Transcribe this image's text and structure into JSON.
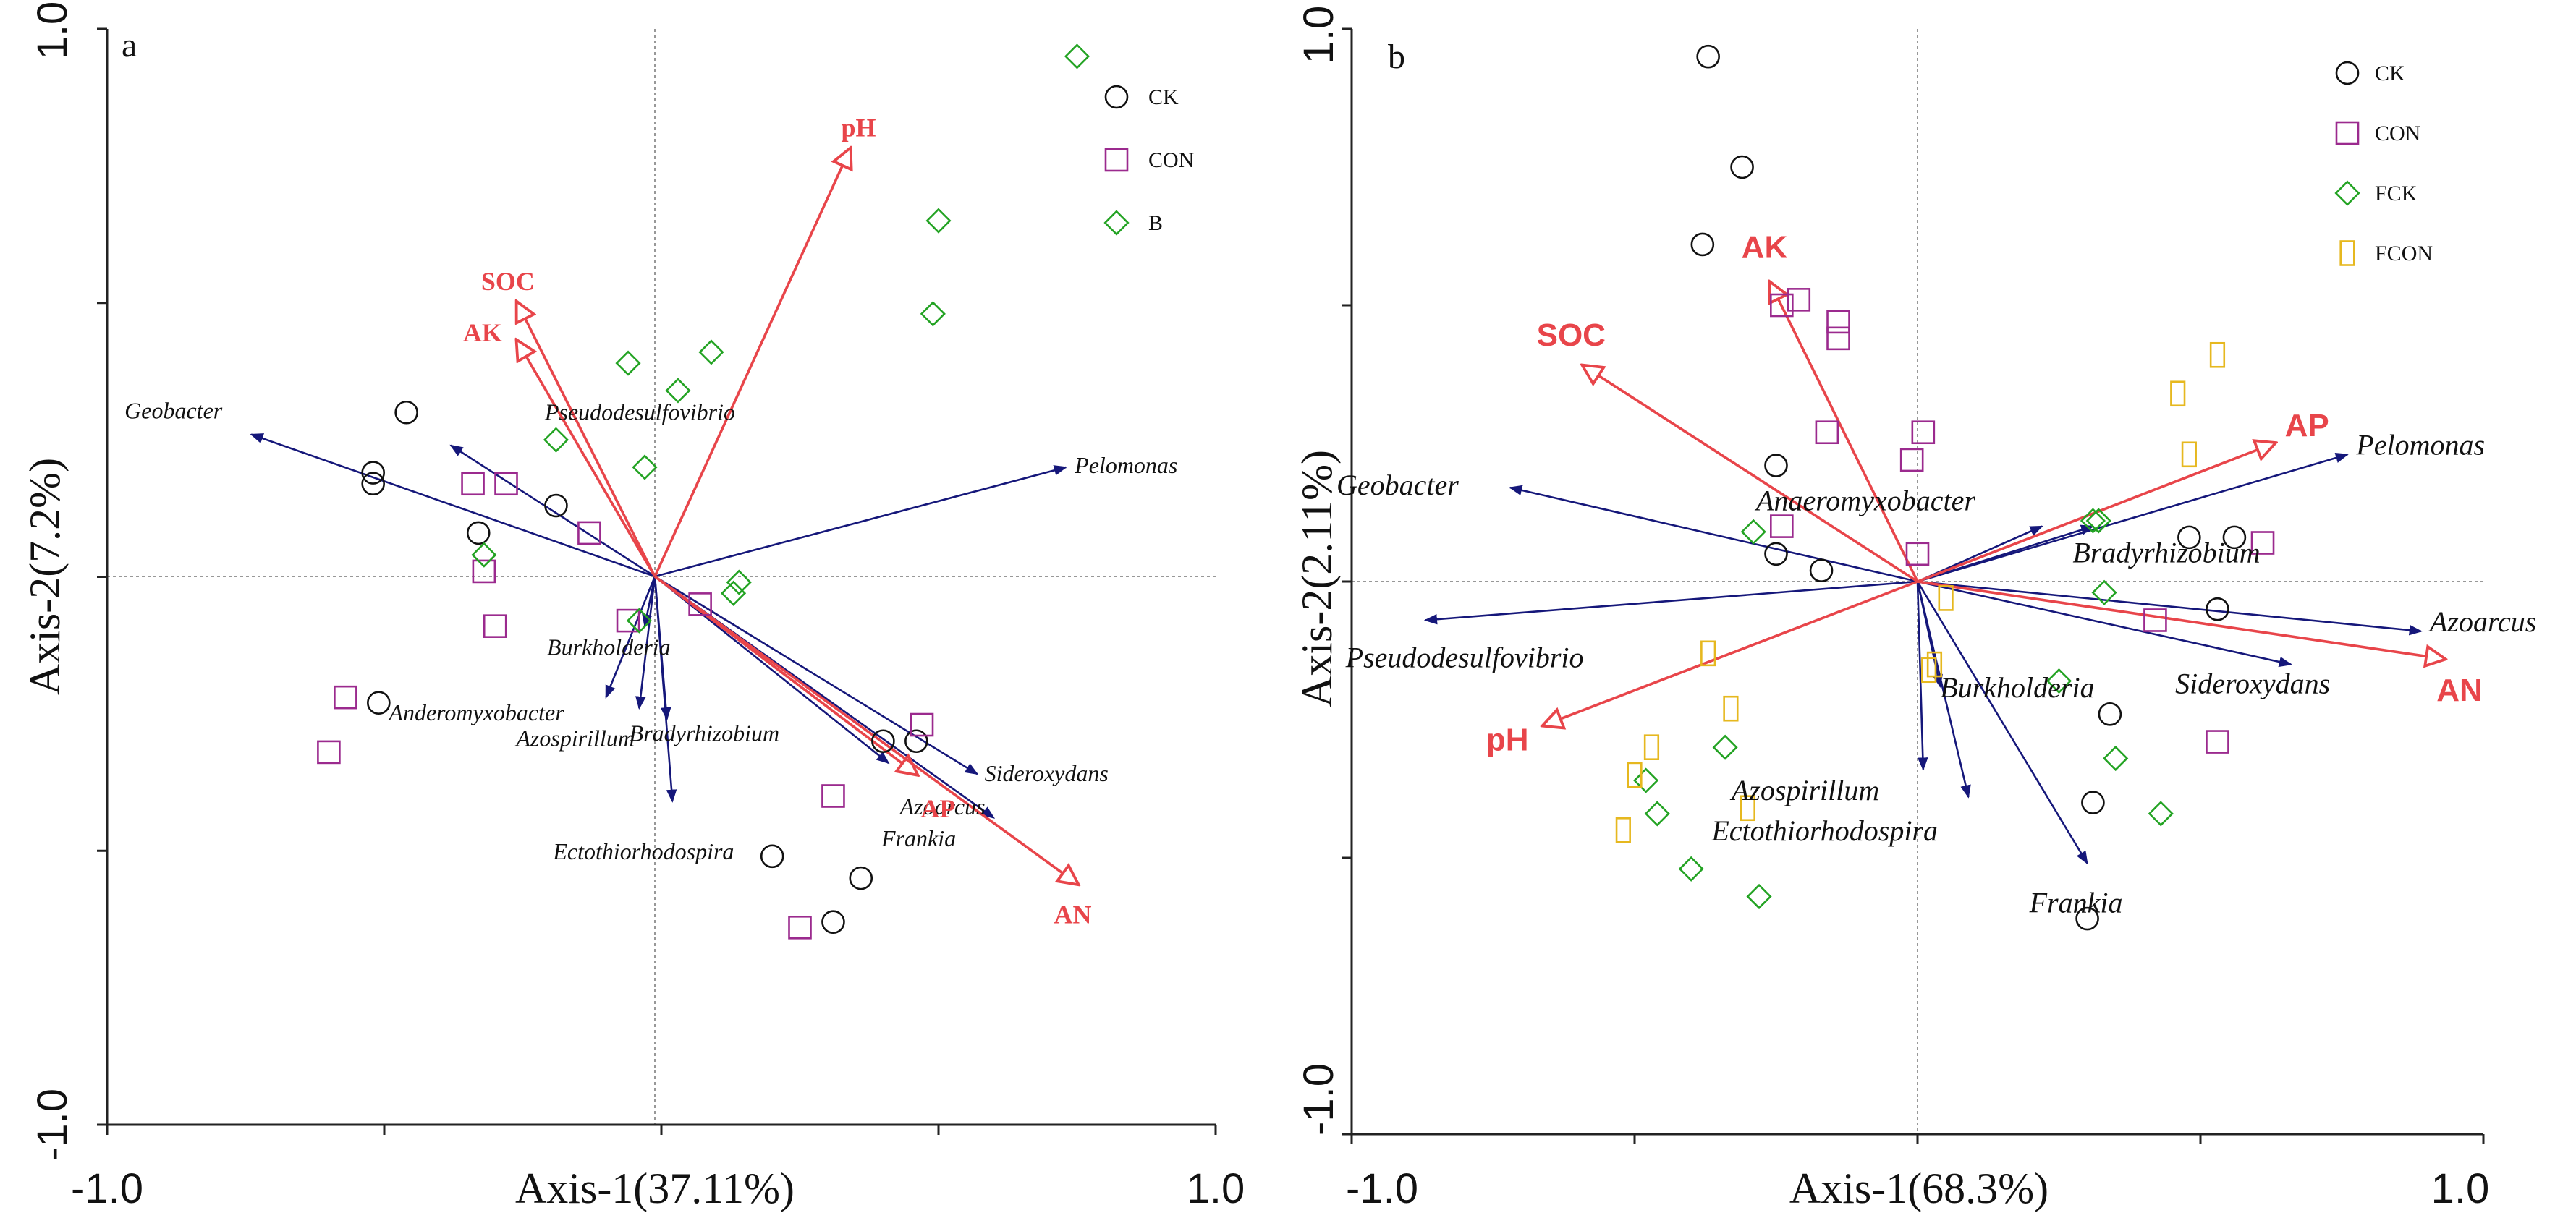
{
  "chart_data": [
    {
      "type": "scatter",
      "panel_label": "a",
      "xlabel": "Axis-1(37.11%)",
      "ylabel": "Axis-2(7.2%)",
      "xlim": [
        -1.0,
        1.0
      ],
      "ylim": [
        -1.0,
        1.0
      ],
      "x_tick_labels": [
        "-1.0",
        "1.0"
      ],
      "y_tick_labels": [
        "-1.0",
        "1.0"
      ],
      "legend": [
        {
          "name": "CK",
          "marker": "circle",
          "color": "#111111"
        },
        {
          "name": "CON",
          "marker": "square",
          "color": "#9b2a8e"
        },
        {
          "name": "B",
          "marker": "diamond",
          "color": "#23a323"
        }
      ],
      "species_vectors": [
        {
          "name": "Geobacter",
          "x": -0.74,
          "y": 0.26
        },
        {
          "name": "Pseudodesulfovibrio",
          "x": -0.38,
          "y": 0.24
        },
        {
          "name": "Pelomonas",
          "x": 0.73,
          "y": 0.2
        },
        {
          "name": "Burkholderia",
          "x": -0.03,
          "y": -0.09
        },
        {
          "name": "Anderomyxobacter",
          "x": -0.1,
          "y": -0.22
        },
        {
          "name": "Azospirillum",
          "x": -0.04,
          "y": -0.24
        },
        {
          "name": "Bradyrhizobium",
          "x": 0.01,
          "y": -0.26
        },
        {
          "name": "Ectothiorhodospira",
          "x": 0.02,
          "y": -0.41
        },
        {
          "name": "Frankia",
          "x": 0.41,
          "y": -0.34
        },
        {
          "name": "Sideroxydans",
          "x": 0.57,
          "y": -0.36
        },
        {
          "name": "Azoarcus",
          "x": 0.6,
          "y": -0.44
        }
      ],
      "env_vectors": [
        {
          "name": "pH",
          "x": 0.34,
          "y": 0.78
        },
        {
          "name": "SOC",
          "x": -0.26,
          "y": 0.5
        },
        {
          "name": "AK",
          "x": -0.26,
          "y": 0.43
        },
        {
          "name": "AP",
          "x": 0.46,
          "y": -0.36
        },
        {
          "name": "AN",
          "x": 0.75,
          "y": -0.56
        }
      ],
      "samples": {
        "CK": [
          [
            -0.46,
            0.3
          ],
          [
            -0.52,
            0.19
          ],
          [
            -0.52,
            0.17
          ],
          [
            -0.33,
            0.08
          ],
          [
            -0.19,
            0.13
          ],
          [
            -0.51,
            -0.23
          ],
          [
            0.2,
            -0.51
          ],
          [
            0.36,
            -0.55
          ],
          [
            0.31,
            -0.63
          ],
          [
            0.4,
            -0.3
          ],
          [
            0.46,
            -0.3
          ]
        ],
        "CON": [
          [
            -0.34,
            0.17
          ],
          [
            -0.28,
            0.17
          ],
          [
            -0.13,
            0.08
          ],
          [
            -0.32,
            0.01
          ],
          [
            -0.3,
            -0.09
          ],
          [
            -0.06,
            -0.08
          ],
          [
            0.07,
            -0.05
          ],
          [
            -0.57,
            -0.22
          ],
          [
            -0.6,
            -0.32
          ],
          [
            0.47,
            -0.27
          ],
          [
            0.31,
            -0.4
          ],
          [
            0.25,
            -0.64
          ]
        ],
        "B": [
          [
            0.75,
            0.95
          ],
          [
            0.5,
            0.65
          ],
          [
            0.49,
            0.48
          ],
          [
            -0.19,
            0.25
          ],
          [
            0.09,
            0.41
          ],
          [
            -0.06,
            0.39
          ],
          [
            0.03,
            0.34
          ],
          [
            -0.03,
            0.2
          ],
          [
            -0.32,
            0.04
          ],
          [
            0.14,
            -0.01
          ],
          [
            0.13,
            -0.03
          ],
          [
            -0.04,
            -0.08
          ]
        ]
      }
    },
    {
      "type": "scatter",
      "panel_label": "b",
      "xlabel": "Axis-1(68.3%)",
      "ylabel": "Axis-2(2.11%)",
      "xlim": [
        -1.0,
        1.0
      ],
      "ylim": [
        -1.0,
        1.0
      ],
      "x_tick_labels": [
        "-1.0",
        "1.0"
      ],
      "y_tick_labels": [
        "-1.0",
        "1.0"
      ],
      "legend": [
        {
          "name": "CK",
          "marker": "circle",
          "color": "#111111"
        },
        {
          "name": "CON",
          "marker": "square",
          "color": "#9b2a8e"
        },
        {
          "name": "FCK",
          "marker": "diamond",
          "color": "#23a323"
        },
        {
          "name": "FCON",
          "marker": "rect",
          "color": "#e6b81f"
        }
      ],
      "species_vectors": [
        {
          "name": "Geobacter",
          "x": -0.72,
          "y": 0.17
        },
        {
          "name": "Pelomonas",
          "x": 0.76,
          "y": 0.23
        },
        {
          "name": "Anaeromyxobacter",
          "x": 0.22,
          "y": 0.1
        },
        {
          "name": "Bradyrhizobium",
          "x": 0.31,
          "y": 0.1
        },
        {
          "name": "Pseudodesulfovibrio",
          "x": -0.87,
          "y": -0.07
        },
        {
          "name": "Azoarcus",
          "x": 0.89,
          "y": -0.09
        },
        {
          "name": "Burkholderia",
          "x": 0.04,
          "y": -0.19
        },
        {
          "name": "Sideroxydans",
          "x": 0.66,
          "y": -0.15
        },
        {
          "name": "Azospirillum",
          "x": 0.01,
          "y": -0.34
        },
        {
          "name": "Ectothiorhodospira",
          "x": 0.09,
          "y": -0.39
        },
        {
          "name": "Frankia",
          "x": 0.3,
          "y": -0.51
        }
      ],
      "env_vectors": [
        {
          "name": "AK",
          "x": -0.26,
          "y": 0.54
        },
        {
          "name": "SOC",
          "x": -0.59,
          "y": 0.39
        },
        {
          "name": "AP",
          "x": 0.63,
          "y": 0.25
        },
        {
          "name": "AN",
          "x": 0.93,
          "y": -0.14
        },
        {
          "name": "pH",
          "x": -0.66,
          "y": -0.26
        }
      ],
      "samples": {
        "CK": [
          [
            -0.37,
            0.95
          ],
          [
            -0.31,
            0.75
          ],
          [
            -0.38,
            0.61
          ],
          [
            -0.25,
            0.21
          ],
          [
            -0.25,
            0.05
          ],
          [
            -0.17,
            0.02
          ],
          [
            0.48,
            0.08
          ],
          [
            0.56,
            0.08
          ],
          [
            0.53,
            -0.05
          ],
          [
            0.34,
            -0.24
          ],
          [
            0.31,
            -0.4
          ],
          [
            0.3,
            -0.61
          ]
        ],
        "CON": [
          [
            -0.24,
            0.5
          ],
          [
            -0.21,
            0.51
          ],
          [
            -0.14,
            0.47
          ],
          [
            -0.14,
            0.44
          ],
          [
            -0.16,
            0.27
          ],
          [
            0.01,
            0.27
          ],
          [
            -0.01,
            0.22
          ],
          [
            -0.24,
            0.1
          ],
          [
            0.0,
            0.05
          ],
          [
            0.61,
            0.07
          ],
          [
            0.42,
            -0.07
          ],
          [
            0.53,
            -0.29
          ]
        ],
        "FCK": [
          [
            -0.29,
            0.09
          ],
          [
            0.31,
            0.11
          ],
          [
            0.32,
            0.11
          ],
          [
            0.33,
            -0.02
          ],
          [
            0.25,
            -0.18
          ],
          [
            0.35,
            -0.32
          ],
          [
            0.43,
            -0.42
          ],
          [
            -0.48,
            -0.36
          ],
          [
            -0.34,
            -0.3
          ],
          [
            -0.46,
            -0.42
          ],
          [
            -0.4,
            -0.52
          ],
          [
            -0.28,
            -0.57
          ]
        ],
        "FCON": [
          [
            0.53,
            0.41
          ],
          [
            0.46,
            0.34
          ],
          [
            0.48,
            0.23
          ],
          [
            0.05,
            -0.03
          ],
          [
            0.03,
            -0.15
          ],
          [
            0.02,
            -0.16
          ],
          [
            -0.37,
            -0.13
          ],
          [
            -0.33,
            -0.23
          ],
          [
            -0.47,
            -0.3
          ],
          [
            -0.5,
            -0.35
          ],
          [
            -0.3,
            -0.41
          ],
          [
            -0.52,
            -0.45
          ]
        ]
      }
    }
  ]
}
